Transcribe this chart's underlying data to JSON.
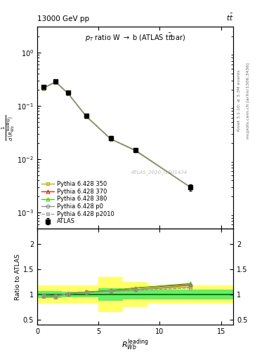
{
  "title_top": "13000 GeV pp",
  "title_top_right": "t$\\bar{t}$",
  "plot_title": "p$_T$ ratio W $\\rightarrow$ b (ATLAS t$\\bar{t}$bar)",
  "ylabel_ratio": "Ratio to ATLAS",
  "xlabel": "$R_{Wb}^{\\mathrm{leading}}$",
  "watermark": "ATLAS_2020_I1801434",
  "right_label_top": "Rivet 3.1.10; ≥ 3.3M events",
  "right_label_bottom": "mcplots.cern.ch [arXiv:1306.3436]",
  "x_centers": [
    0.5,
    1.5,
    2.5,
    4.0,
    6.0,
    8.0,
    12.5
  ],
  "x_edges": [
    0.0,
    1.0,
    2.0,
    3.0,
    5.0,
    7.0,
    9.0,
    16.0
  ],
  "atlas_y": [
    0.225,
    0.285,
    0.175,
    0.065,
    0.025,
    0.015,
    0.003
  ],
  "atlas_yerr": [
    0.015,
    0.018,
    0.01,
    0.004,
    0.002,
    0.001,
    0.0004
  ],
  "pythia350_y": [
    0.215,
    0.28,
    0.172,
    0.063,
    0.024,
    0.0145,
    0.003
  ],
  "pythia370_y": [
    0.215,
    0.28,
    0.172,
    0.064,
    0.024,
    0.0148,
    0.003
  ],
  "pythia380_y": [
    0.215,
    0.28,
    0.172,
    0.064,
    0.024,
    0.0148,
    0.003
  ],
  "pythia_p0_y": [
    0.218,
    0.282,
    0.173,
    0.063,
    0.024,
    0.0145,
    0.003
  ],
  "pythia_p2010_y": [
    0.215,
    0.28,
    0.172,
    0.063,
    0.024,
    0.0145,
    0.003
  ],
  "ratio_350": [
    0.99,
    0.97,
    1.02,
    1.05,
    1.07,
    1.1,
    1.15
  ],
  "ratio_370": [
    0.97,
    0.96,
    1.02,
    1.05,
    1.08,
    1.13,
    1.2
  ],
  "ratio_380": [
    0.97,
    0.96,
    1.02,
    1.05,
    1.08,
    1.13,
    1.22
  ],
  "ratio_p0": [
    0.99,
    0.97,
    1.02,
    1.04,
    1.07,
    1.1,
    1.18
  ],
  "ratio_p2010": [
    0.96,
    0.955,
    1.01,
    1.04,
    1.06,
    1.08,
    1.13
  ],
  "yellow_band_lo": [
    0.82,
    0.82,
    0.82,
    0.82,
    0.65,
    0.75,
    0.82
  ],
  "yellow_band_hi": [
    1.18,
    1.18,
    1.18,
    1.18,
    1.35,
    1.25,
    1.18
  ],
  "green_band_lo": [
    0.93,
    0.93,
    0.95,
    0.95,
    0.88,
    0.9,
    0.9
  ],
  "green_band_hi": [
    1.07,
    1.07,
    1.05,
    1.05,
    1.12,
    1.1,
    1.1
  ],
  "color_350": "#b8a800",
  "color_370": "#cc2200",
  "color_380": "#44cc00",
  "color_p0": "#888888",
  "color_p2010": "#999999",
  "ylim_main": [
    0.0005,
    3.0
  ],
  "ylim_ratio": [
    0.4,
    2.3
  ],
  "xlim": [
    0.0,
    16.0
  ]
}
